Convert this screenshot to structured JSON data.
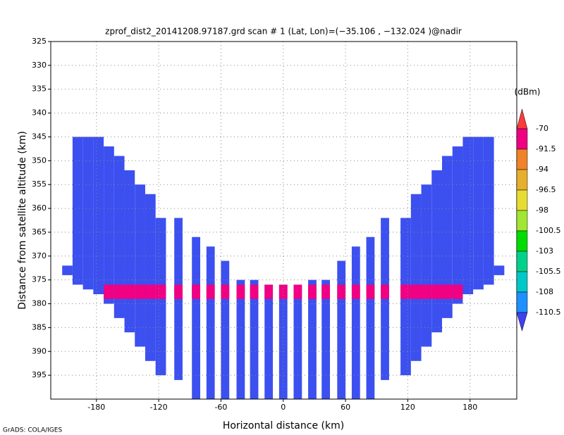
{
  "chart_data": {
    "type": "swath",
    "title": "zprof_dist2_20141208.97187.grd  scan # 1  (Lat, Lon)=(−35.106 , −132.024 )@nadir",
    "x_label": "Horizontal distance (km)",
    "y_label": "Distance from satellite altitude (km)",
    "footer": "GrADS: COLA/IGES",
    "xlim": [
      -224,
      225
    ],
    "ylim": [
      325,
      400
    ],
    "xticks": [
      -180,
      -120,
      -60,
      0,
      60,
      120,
      180
    ],
    "yticks": [
      325,
      330,
      335,
      340,
      345,
      350,
      355,
      360,
      365,
      370,
      375,
      380,
      385,
      390,
      395
    ],
    "grid": true,
    "color": "#3c50f0",
    "surface_color": "#f00082",
    "x": [
      -208,
      -198,
      -188,
      -178,
      -168,
      -158,
      -148,
      -138,
      -128,
      -118,
      -101,
      -84,
      -70,
      -56,
      -41,
      -28,
      -14,
      0,
      14,
      28,
      41,
      56,
      70,
      84,
      98,
      118,
      128,
      138,
      148,
      158,
      168,
      178,
      188,
      198,
      208
    ],
    "width": [
      10,
      10,
      10,
      10,
      10,
      10,
      10,
      10,
      10,
      10,
      8,
      8,
      8,
      8,
      8,
      8,
      8,
      8,
      8,
      8,
      8,
      8,
      8,
      8,
      8,
      10,
      10,
      10,
      10,
      10,
      10,
      10,
      10,
      10,
      10
    ],
    "top": [
      372,
      345,
      345,
      345,
      347,
      349,
      352,
      355,
      357,
      362,
      362,
      366,
      368,
      371,
      375,
      375,
      376,
      376,
      376,
      375,
      375,
      371,
      368,
      366,
      362,
      362,
      357,
      355,
      352,
      349,
      347,
      345,
      345,
      345,
      372
    ],
    "bottom": [
      374,
      376,
      377,
      378,
      380,
      383,
      386,
      389,
      392,
      395,
      396,
      400,
      400,
      400,
      400,
      400,
      400,
      400,
      400,
      400,
      400,
      400,
      400,
      400,
      396,
      395,
      392,
      389,
      386,
      383,
      380,
      378,
      377,
      376,
      374
    ],
    "surface_top": [
      null,
      null,
      null,
      null,
      376,
      376,
      376,
      376,
      376,
      376,
      376,
      376,
      376,
      376,
      376,
      376,
      376,
      376,
      376,
      376,
      376,
      376,
      376,
      376,
      376,
      376,
      376,
      376,
      376,
      376,
      376,
      null,
      null,
      null,
      null
    ],
    "surface_bottom": [
      null,
      null,
      null,
      null,
      379,
      379,
      379,
      379,
      379,
      379,
      379,
      379,
      379,
      379,
      379,
      379,
      379,
      379,
      379,
      379,
      379,
      379,
      379,
      379,
      379,
      379,
      379,
      379,
      379,
      379,
      379,
      null,
      null,
      null,
      null
    ],
    "colorbar": {
      "label": "(dBm)",
      "levels": [
        -70,
        -91.5,
        -94,
        -96.5,
        -98,
        -100.5,
        -103,
        -105.5,
        -108,
        -110.5
      ],
      "colors": [
        "#fa3c3c",
        "#f00082",
        "#f08228",
        "#e6af2d",
        "#e6dc32",
        "#a0e632",
        "#00dc00",
        "#00d28c",
        "#00c8c8",
        "#1e90ff",
        "#4040f0"
      ]
    }
  }
}
